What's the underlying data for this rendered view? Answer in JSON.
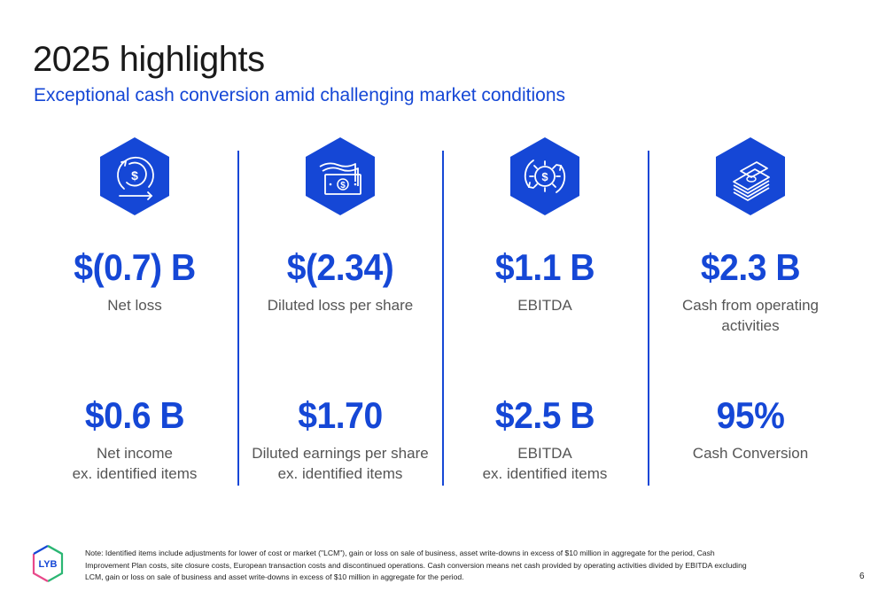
{
  "header": {
    "title": "2025 highlights",
    "subtitle": "Exceptional cash conversion amid challenging market conditions"
  },
  "colors": {
    "accent": "#1547d6",
    "label_gray": "#555555"
  },
  "columns": [
    {
      "icon": "cycle-dollar-icon",
      "metric1": "$(0.7) B",
      "label1": "Net loss",
      "metric2": "$0.6 B",
      "label2_line1": "Net income",
      "label2_line2": "ex. identified items"
    },
    {
      "icon": "banknotes-icon",
      "metric1": "$(2.34)",
      "label1": "Diluted loss per share",
      "metric2": "$1.70",
      "label2_line1": "Diluted earnings per share",
      "label2_line2": "ex. identified items"
    },
    {
      "icon": "gear-dollar-icon",
      "metric1": "$1.1 B",
      "label1": "EBITDA",
      "metric2": "$2.5 B",
      "label2_line1": "EBITDA",
      "label2_line2": "ex. identified items"
    },
    {
      "icon": "cash-stack-icon",
      "metric1": "$2.3 B",
      "label1_line1": "Cash from operating",
      "label1_line2": "activities",
      "metric2": "95%",
      "label2_line1": "Cash Conversion"
    }
  ],
  "footer": {
    "logo_text": "LYB",
    "note": "Note: Identified items include adjustments for lower of cost or market (\"LCM\"), gain or loss on sale of business, asset write-downs in excess of $10 million in aggregate for the period, Cash Improvement Plan costs, site closure costs, European transaction costs and discontinued operations. Cash conversion means net cash provided by operating activities divided by EBITDA excluding LCM, gain or loss on sale of business and asset write-downs in excess of $10 million in aggregate for the period.",
    "page_number": "6"
  }
}
